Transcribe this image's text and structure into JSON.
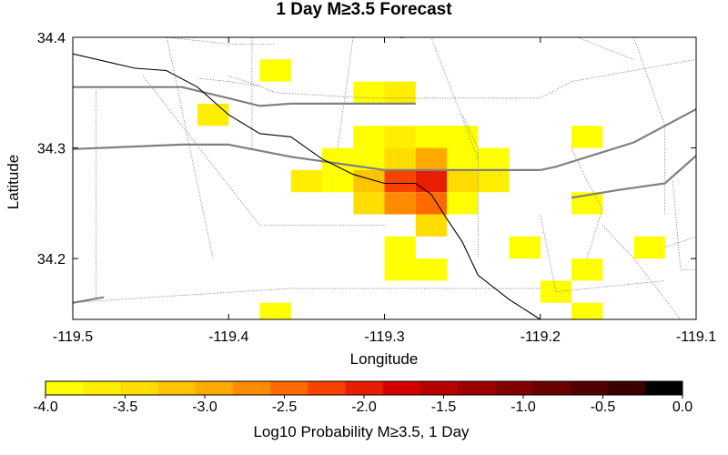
{
  "title": "1 Day M≥3.5 Forecast",
  "x_axis": {
    "label": "Longitude",
    "ticks": [
      "-119.5",
      "-119.4",
      "-119.3",
      "-119.2",
      "-119.1"
    ]
  },
  "y_axis": {
    "label": "Latitude",
    "ticks": [
      "34.4",
      "34.3",
      "34.2"
    ]
  },
  "colorbar": {
    "label": "Log10 Probability M≥3.5, 1 Day",
    "ticks": [
      "-4.0",
      "-3.5",
      "-3.0",
      "-2.5",
      "-2.0",
      "-1.5",
      "-1.0",
      "-0.5",
      "0.0"
    ],
    "colors": [
      "#ffff00",
      "#ffee00",
      "#ffdd00",
      "#ffc400",
      "#ffaa00",
      "#ff8c00",
      "#ff6a00",
      "#f84200",
      "#e81e00",
      "#d40000",
      "#b80000",
      "#9c0000",
      "#820000",
      "#6a0000",
      "#520000",
      "#3a0000",
      "#000000"
    ]
  },
  "chart_data": {
    "type": "heatmap",
    "title": "1 Day M≥3.5 Forecast",
    "xlabel": "Longitude",
    "ylabel": "Latitude",
    "xlim": [
      -119.5,
      -119.1
    ],
    "ylim": [
      34.145,
      34.4
    ],
    "cell_size_deg": 0.02,
    "value_range": [
      -4.0,
      0.0
    ],
    "cells": [
      {
        "lon": -119.37,
        "lat": 34.37,
        "v": -3.9
      },
      {
        "lon": -119.31,
        "lat": 34.35,
        "v": -3.8
      },
      {
        "lon": -119.29,
        "lat": 34.35,
        "v": -3.7
      },
      {
        "lon": -119.41,
        "lat": 34.33,
        "v": -3.7
      },
      {
        "lon": -119.29,
        "lat": 34.31,
        "v": -3.6
      },
      {
        "lon": -119.27,
        "lat": 34.31,
        "v": -3.8
      },
      {
        "lon": -119.25,
        "lat": 34.31,
        "v": -3.9
      },
      {
        "lon": -119.31,
        "lat": 34.31,
        "v": -3.9
      },
      {
        "lon": -119.17,
        "lat": 34.31,
        "v": -3.9
      },
      {
        "lon": -119.33,
        "lat": 34.29,
        "v": -3.9
      },
      {
        "lon": -119.31,
        "lat": 34.29,
        "v": -3.8
      },
      {
        "lon": -119.29,
        "lat": 34.29,
        "v": -3.3
      },
      {
        "lon": -119.27,
        "lat": 34.29,
        "v": -3.0
      },
      {
        "lon": -119.25,
        "lat": 34.29,
        "v": -3.8
      },
      {
        "lon": -119.23,
        "lat": 34.29,
        "v": -3.9
      },
      {
        "lon": -119.35,
        "lat": 34.27,
        "v": -3.6
      },
      {
        "lon": -119.33,
        "lat": 34.27,
        "v": -3.8
      },
      {
        "lon": -119.31,
        "lat": 34.27,
        "v": -3.2
      },
      {
        "lon": -119.29,
        "lat": 34.27,
        "v": -2.2
      },
      {
        "lon": -119.27,
        "lat": 34.27,
        "v": -2.0
      },
      {
        "lon": -119.25,
        "lat": 34.27,
        "v": -3.4
      },
      {
        "lon": -119.23,
        "lat": 34.27,
        "v": -3.6
      },
      {
        "lon": -119.31,
        "lat": 34.25,
        "v": -3.4
      },
      {
        "lon": -119.29,
        "lat": 34.25,
        "v": -2.6
      },
      {
        "lon": -119.27,
        "lat": 34.25,
        "v": -2.5
      },
      {
        "lon": -119.25,
        "lat": 34.25,
        "v": -3.8
      },
      {
        "lon": -119.17,
        "lat": 34.25,
        "v": -3.9
      },
      {
        "lon": -119.27,
        "lat": 34.23,
        "v": -3.4
      },
      {
        "lon": -119.29,
        "lat": 34.21,
        "v": -3.9
      },
      {
        "lon": -119.21,
        "lat": 34.21,
        "v": -3.8
      },
      {
        "lon": -119.13,
        "lat": 34.21,
        "v": -3.8
      },
      {
        "lon": -119.29,
        "lat": 34.19,
        "v": -3.9
      },
      {
        "lon": -119.27,
        "lat": 34.19,
        "v": -3.8
      },
      {
        "lon": -119.17,
        "lat": 34.19,
        "v": -3.9
      },
      {
        "lon": -119.19,
        "lat": 34.17,
        "v": -3.9
      },
      {
        "lon": -119.37,
        "lat": 34.15,
        "v": -3.8
      },
      {
        "lon": -119.17,
        "lat": 34.15,
        "v": -3.9
      }
    ],
    "lines": {
      "major_roads": [
        [
          [
            -119.5,
            34.355
          ],
          [
            -119.43,
            34.355
          ],
          [
            -119.4,
            34.345
          ],
          [
            -119.38,
            34.338
          ],
          [
            -119.36,
            34.34
          ],
          [
            -119.3,
            34.34
          ],
          [
            -119.28,
            34.34
          ]
        ],
        [
          [
            -119.5,
            34.299
          ],
          [
            -119.43,
            34.303
          ],
          [
            -119.4,
            34.303
          ],
          [
            -119.36,
            34.292
          ],
          [
            -119.3,
            34.28
          ],
          [
            -119.2,
            34.28
          ],
          [
            -119.19,
            34.283
          ],
          [
            -119.14,
            34.305
          ],
          [
            -119.1,
            34.335
          ]
        ],
        [
          [
            -119.5,
            34.16
          ],
          [
            -119.48,
            34.165
          ]
        ],
        [
          [
            -119.18,
            34.255
          ],
          [
            -119.15,
            34.262
          ],
          [
            -119.12,
            34.268
          ],
          [
            -119.1,
            34.293
          ]
        ],
        [
          [
            -119.29,
            34.4
          ],
          [
            -119.23,
            34.408
          ]
        ]
      ],
      "coastline": [
        [
          [
            -119.5,
            34.385
          ],
          [
            -119.46,
            34.372
          ],
          [
            -119.44,
            34.37
          ],
          [
            -119.42,
            34.355
          ],
          [
            -119.4,
            34.33
          ],
          [
            -119.38,
            34.313
          ],
          [
            -119.36,
            34.31
          ],
          [
            -119.34,
            34.29
          ],
          [
            -119.32,
            34.276
          ],
          [
            -119.3,
            34.268
          ],
          [
            -119.28,
            34.268
          ],
          [
            -119.27,
            34.258
          ],
          [
            -119.26,
            34.236
          ],
          [
            -119.25,
            34.215
          ],
          [
            -119.24,
            34.185
          ],
          [
            -119.22,
            34.163
          ],
          [
            -119.2,
            34.145
          ]
        ]
      ],
      "boundaries": [
        [
          [
            -119.44,
            34.4
          ],
          [
            -119.4,
            34.394
          ],
          [
            -119.37,
            34.394
          ]
        ],
        [
          [
            -119.35,
            34.402
          ],
          [
            -119.33,
            34.4
          ]
        ],
        [
          [
            -119.4,
            34.365
          ],
          [
            -119.38,
            34.356
          ],
          [
            -119.37,
            34.35
          ],
          [
            -119.31,
            34.345
          ],
          [
            -119.29,
            34.345
          ],
          [
            -119.2,
            34.345
          ],
          [
            -119.18,
            34.36
          ],
          [
            -119.1,
            34.38
          ]
        ],
        [
          [
            -119.42,
            34.363
          ],
          [
            -119.4,
            34.36
          ],
          [
            -119.38,
            34.356
          ]
        ],
        [
          [
            -119.485,
            34.355
          ],
          [
            -119.485,
            34.165
          ]
        ],
        [
          [
            -119.44,
            34.402
          ],
          [
            -119.41,
            34.2
          ]
        ],
        [
          [
            -119.455,
            34.365
          ],
          [
            -119.38,
            34.23
          ],
          [
            -119.33,
            34.23
          ],
          [
            -119.3,
            34.23
          ]
        ],
        [
          [
            -119.5,
            34.16
          ],
          [
            -119.45,
            34.165
          ],
          [
            -119.36,
            34.173
          ],
          [
            -119.29,
            34.173
          ],
          [
            -119.25,
            34.173
          ],
          [
            -119.2,
            34.173
          ]
        ],
        [
          [
            -119.32,
            34.402
          ],
          [
            -119.33,
            34.3
          ]
        ],
        [
          [
            -119.385,
            34.402
          ],
          [
            -119.385,
            34.3
          ]
        ],
        [
          [
            -119.29,
            34.4
          ],
          [
            -119.27,
            34.4
          ],
          [
            -119.24,
            34.29
          ]
        ],
        [
          [
            -119.25,
            34.33
          ],
          [
            -119.24,
            34.3
          ],
          [
            -119.24,
            34.2
          ]
        ],
        [
          [
            -119.28,
            34.402
          ],
          [
            -119.29,
            34.4
          ]
        ],
        [
          [
            -119.21,
            34.402
          ],
          [
            -119.18,
            34.402
          ]
        ],
        [
          [
            -119.18,
            34.402
          ],
          [
            -119.14,
            34.38
          ]
        ],
        [
          [
            -119.14,
            34.4
          ],
          [
            -119.12,
            34.32
          ],
          [
            -119.12,
            34.24
          ]
        ],
        [
          [
            -119.18,
            34.3
          ],
          [
            -119.17,
            34.27
          ],
          [
            -119.16,
            34.245
          ],
          [
            -119.17,
            34.2
          ]
        ],
        [
          [
            -119.2,
            34.24
          ],
          [
            -119.19,
            34.17
          ],
          [
            -119.12,
            34.18
          ]
        ],
        [
          [
            -119.115,
            34.27
          ],
          [
            -119.11,
            34.19
          ],
          [
            -119.1,
            34.19
          ]
        ],
        [
          [
            -119.12,
            34.21
          ],
          [
            -119.1,
            34.22
          ]
        ],
        [
          [
            -119.16,
            34.23
          ],
          [
            -119.14,
            34.2
          ],
          [
            -119.11,
            34.145
          ]
        ]
      ]
    }
  }
}
